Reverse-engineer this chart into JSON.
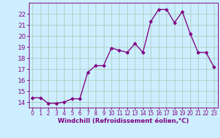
{
  "x": [
    0,
    1,
    2,
    3,
    4,
    5,
    6,
    7,
    8,
    9,
    10,
    11,
    12,
    13,
    14,
    15,
    16,
    17,
    18,
    19,
    20,
    21,
    22,
    23
  ],
  "y": [
    14.4,
    14.4,
    13.9,
    13.9,
    14.0,
    14.3,
    14.3,
    16.7,
    17.3,
    17.3,
    18.9,
    18.7,
    18.5,
    19.3,
    18.5,
    21.3,
    22.4,
    22.4,
    21.2,
    22.2,
    20.2,
    18.5,
    18.5,
    17.2
  ],
  "line_color": "#800080",
  "marker": "D",
  "markersize": 2.5,
  "linewidth": 1.0,
  "xlabel": "Windchill (Refroidissement éolien,°C)",
  "xlim": [
    -0.5,
    23.5
  ],
  "ylim": [
    13.5,
    23.0
  ],
  "yticks": [
    14,
    15,
    16,
    17,
    18,
    19,
    20,
    21,
    22
  ],
  "xticks": [
    0,
    1,
    2,
    3,
    4,
    5,
    6,
    7,
    8,
    9,
    10,
    11,
    12,
    13,
    14,
    15,
    16,
    17,
    18,
    19,
    20,
    21,
    22,
    23
  ],
  "background_color": "#cceeff",
  "grid_color": "#aaccbb",
  "tick_color": "#800080",
  "label_color": "#800080",
  "xlabel_fontsize": 6.5,
  "xlabel_fontweight": "bold",
  "xtick_fontsize": 5.5,
  "ytick_fontsize": 6.5
}
